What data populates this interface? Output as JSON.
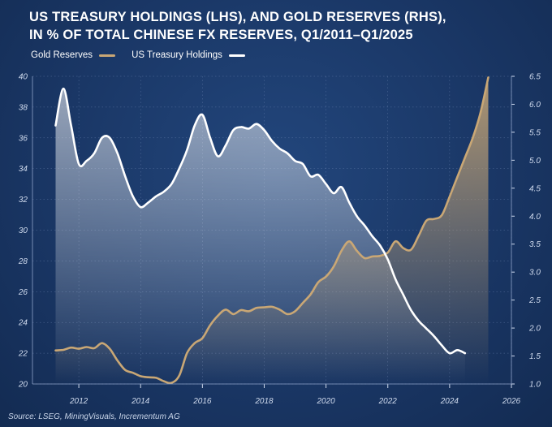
{
  "title_lines": [
    "US TREASURY HOLDINGS (LHS), AND GOLD RESERVES (RHS),",
    "IN % OF TOTAL CHINESE FX RESERVES, Q1/2011–Q1/2025"
  ],
  "source": "Source: LSEG, MiningVisuals, Incrementum AG",
  "colors": {
    "gold": "#c9a775",
    "treasury": "#ffffff"
  },
  "chart_data": {
    "type": "line",
    "title": "US TREASURY HOLDINGS (LHS), AND GOLD RESERVES (RHS), IN % OF TOTAL CHINESE FX RESERVES, Q1/2011–Q1/2025",
    "legend_position": "top-left",
    "grid": true,
    "xlim": [
      2010.5,
      2026
    ],
    "ylim_left": [
      20,
      40
    ],
    "ylim_right": [
      1.0,
      6.5
    ],
    "x_ticks": [
      "2012",
      "2014",
      "2016",
      "2018",
      "2020",
      "2022",
      "2024",
      "2026"
    ],
    "y_left_ticks": [
      "20",
      "22",
      "24",
      "26",
      "28",
      "30",
      "32",
      "34",
      "36",
      "38",
      "40"
    ],
    "y_right_ticks": [
      "1.0",
      "1.5",
      "2.0",
      "2.5",
      "3.0",
      "3.5",
      "4.0",
      "4.5",
      "5.0",
      "5.5",
      "6.0",
      "6.5"
    ],
    "series": [
      {
        "name": "Gold Reserves",
        "axis": "right",
        "points": [
          [
            2011.25,
            1.6
          ],
          [
            2011.5,
            1.61
          ],
          [
            2011.75,
            1.65
          ],
          [
            2012.0,
            1.63
          ],
          [
            2012.25,
            1.66
          ],
          [
            2012.5,
            1.64
          ],
          [
            2012.75,
            1.73
          ],
          [
            2013.0,
            1.63
          ],
          [
            2013.25,
            1.42
          ],
          [
            2013.5,
            1.25
          ],
          [
            2013.75,
            1.2
          ],
          [
            2014.0,
            1.14
          ],
          [
            2014.25,
            1.12
          ],
          [
            2014.5,
            1.11
          ],
          [
            2014.75,
            1.05
          ],
          [
            2015.0,
            1.02
          ],
          [
            2015.25,
            1.15
          ],
          [
            2015.5,
            1.55
          ],
          [
            2015.75,
            1.73
          ],
          [
            2016.0,
            1.82
          ],
          [
            2016.25,
            2.05
          ],
          [
            2016.5,
            2.22
          ],
          [
            2016.75,
            2.33
          ],
          [
            2017.0,
            2.25
          ],
          [
            2017.25,
            2.32
          ],
          [
            2017.5,
            2.3
          ],
          [
            2017.75,
            2.36
          ],
          [
            2018.0,
            2.37
          ],
          [
            2018.25,
            2.38
          ],
          [
            2018.5,
            2.33
          ],
          [
            2018.75,
            2.25
          ],
          [
            2019.0,
            2.3
          ],
          [
            2019.25,
            2.45
          ],
          [
            2019.5,
            2.6
          ],
          [
            2019.75,
            2.82
          ],
          [
            2020.0,
            2.92
          ],
          [
            2020.25,
            3.1
          ],
          [
            2020.5,
            3.38
          ],
          [
            2020.75,
            3.55
          ],
          [
            2021.0,
            3.38
          ],
          [
            2021.25,
            3.25
          ],
          [
            2021.5,
            3.28
          ],
          [
            2021.75,
            3.29
          ],
          [
            2022.0,
            3.35
          ],
          [
            2022.25,
            3.55
          ],
          [
            2022.5,
            3.43
          ],
          [
            2022.75,
            3.4
          ],
          [
            2023.0,
            3.65
          ],
          [
            2023.25,
            3.92
          ],
          [
            2023.5,
            3.95
          ],
          [
            2023.75,
            4.02
          ],
          [
            2024.0,
            4.35
          ],
          [
            2024.25,
            4.7
          ],
          [
            2024.5,
            5.05
          ],
          [
            2024.75,
            5.4
          ],
          [
            2025.0,
            5.85
          ],
          [
            2025.25,
            6.48
          ]
        ]
      },
      {
        "name": "US Treasury Holdings",
        "axis": "left",
        "points": [
          [
            2011.25,
            36.8
          ],
          [
            2011.5,
            39.2
          ],
          [
            2011.75,
            36.8
          ],
          [
            2012.0,
            34.3
          ],
          [
            2012.25,
            34.5
          ],
          [
            2012.5,
            35.0
          ],
          [
            2012.75,
            36.0
          ],
          [
            2013.0,
            36.0
          ],
          [
            2013.25,
            35.0
          ],
          [
            2013.5,
            33.5
          ],
          [
            2013.75,
            32.2
          ],
          [
            2014.0,
            31.5
          ],
          [
            2014.25,
            31.8
          ],
          [
            2014.5,
            32.2
          ],
          [
            2014.75,
            32.5
          ],
          [
            2015.0,
            33.0
          ],
          [
            2015.25,
            34.0
          ],
          [
            2015.5,
            35.2
          ],
          [
            2015.75,
            36.8
          ],
          [
            2016.0,
            37.5
          ],
          [
            2016.25,
            36.0
          ],
          [
            2016.5,
            34.8
          ],
          [
            2016.75,
            35.5
          ],
          [
            2017.0,
            36.5
          ],
          [
            2017.25,
            36.7
          ],
          [
            2017.5,
            36.6
          ],
          [
            2017.75,
            36.9
          ],
          [
            2018.0,
            36.5
          ],
          [
            2018.25,
            35.8
          ],
          [
            2018.5,
            35.3
          ],
          [
            2018.75,
            35.0
          ],
          [
            2019.0,
            34.5
          ],
          [
            2019.25,
            34.3
          ],
          [
            2019.5,
            33.5
          ],
          [
            2019.75,
            33.6
          ],
          [
            2020.0,
            33.0
          ],
          [
            2020.25,
            32.4
          ],
          [
            2020.5,
            32.8
          ],
          [
            2020.75,
            31.8
          ],
          [
            2021.0,
            30.9
          ],
          [
            2021.25,
            30.3
          ],
          [
            2021.5,
            29.6
          ],
          [
            2021.75,
            29.0
          ],
          [
            2022.0,
            28.1
          ],
          [
            2022.25,
            26.8
          ],
          [
            2022.5,
            25.8
          ],
          [
            2022.75,
            24.8
          ],
          [
            2023.0,
            24.1
          ],
          [
            2023.25,
            23.6
          ],
          [
            2023.5,
            23.1
          ],
          [
            2023.75,
            22.5
          ],
          [
            2024.0,
            22.0
          ],
          [
            2024.25,
            22.2
          ],
          [
            2024.5,
            22.0
          ]
        ]
      }
    ]
  }
}
